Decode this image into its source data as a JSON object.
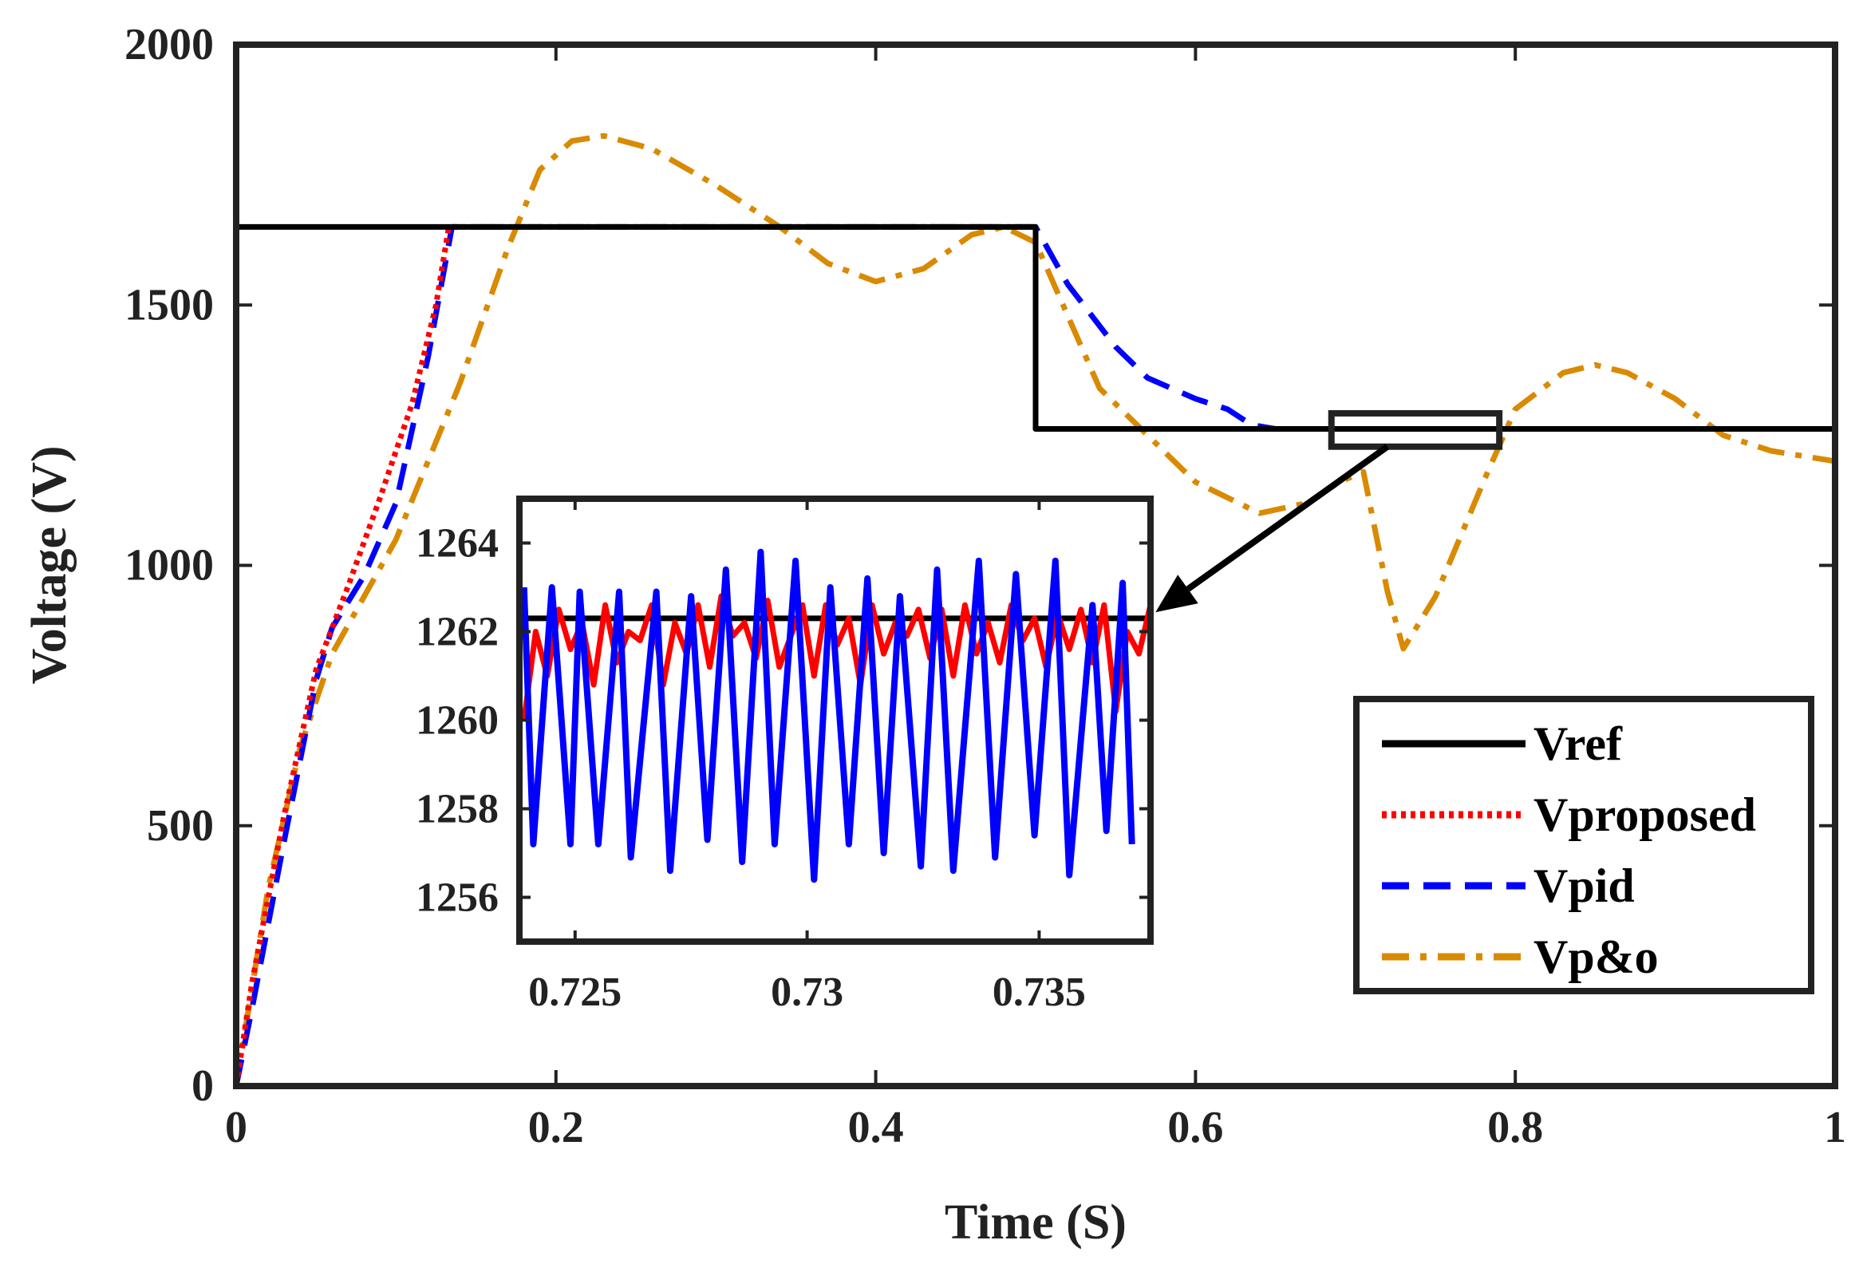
{
  "chart_data": {
    "type": "line",
    "title": "",
    "xlabel": "Time (S)",
    "ylabel": "Voltage (V)",
    "xlim": [
      0,
      1
    ],
    "ylim": [
      0,
      2000
    ],
    "xticks": [
      0,
      0.2,
      0.4,
      0.6,
      0.8,
      1
    ],
    "xtick_labels": [
      "0",
      "0.2",
      "0.4",
      "0.6",
      "0.8",
      "1"
    ],
    "yticks": [
      0,
      500,
      1000,
      1500,
      2000
    ],
    "ytick_labels": [
      "0",
      "500",
      "1000",
      "1500",
      "2000"
    ],
    "grid": false,
    "legend_position": "bottom-right",
    "series": [
      {
        "name": "Vref",
        "color": "#000000",
        "style": "solid",
        "x": [
          0,
          0.5,
          0.5,
          1.0
        ],
        "y": [
          1650,
          1650,
          1262,
          1262
        ]
      },
      {
        "name": "Vproposed",
        "color": "#ff0000",
        "style": "dotted",
        "x": [
          0,
          0.01,
          0.03,
          0.05,
          0.07,
          0.09,
          0.11,
          0.125,
          0.133,
          0.5,
          0.5,
          1.0
        ],
        "y": [
          0,
          200,
          520,
          800,
          960,
          1130,
          1310,
          1500,
          1650,
          1650,
          1262,
          1262
        ]
      },
      {
        "name": "Vpid",
        "color": "#0000ff",
        "style": "dashed",
        "x": [
          0,
          0.01,
          0.03,
          0.05,
          0.06,
          0.08,
          0.1,
          0.12,
          0.135,
          0.5,
          0.52,
          0.55,
          0.57,
          0.6,
          0.62,
          0.635,
          0.65,
          1.0
        ],
        "y": [
          0,
          150,
          470,
          780,
          880,
          980,
          1120,
          1400,
          1650,
          1650,
          1540,
          1420,
          1360,
          1320,
          1300,
          1270,
          1262,
          1262
        ]
      },
      {
        "name": "Vp&o",
        "color": "#d98a00",
        "style": "dashdot",
        "x": [
          0,
          0.02,
          0.04,
          0.06,
          0.1,
          0.14,
          0.17,
          0.19,
          0.21,
          0.23,
          0.26,
          0.3,
          0.34,
          0.37,
          0.4,
          0.43,
          0.46,
          0.48,
          0.5,
          0.52,
          0.54,
          0.57,
          0.6,
          0.64,
          0.67,
          0.69,
          0.705,
          0.72,
          0.73,
          0.75,
          0.78,
          0.8,
          0.83,
          0.85,
          0.87,
          0.9,
          0.93,
          0.96,
          1.0
        ],
        "y": [
          0,
          380,
          650,
          830,
          1050,
          1350,
          1610,
          1760,
          1815,
          1825,
          1800,
          1730,
          1650,
          1580,
          1545,
          1570,
          1635,
          1650,
          1620,
          1480,
          1340,
          1250,
          1160,
          1100,
          1120,
          1160,
          1180,
          950,
          840,
          940,
          1160,
          1300,
          1370,
          1385,
          1370,
          1320,
          1250,
          1220,
          1200
        ]
      }
    ],
    "annotations": [
      {
        "type": "zoom-box",
        "x_range": [
          0.685,
          0.79
        ],
        "y_range": [
          1228,
          1292
        ]
      },
      {
        "type": "arrow",
        "from": [
          0.72,
          1228
        ],
        "to": [
          0.575,
          910
        ]
      }
    ],
    "inset": {
      "xlim": [
        0.7238,
        0.7374
      ],
      "ylim": [
        1255,
        1265
      ],
      "xticks": [
        0.725,
        0.73,
        0.735
      ],
      "xtick_labels": [
        "0.725",
        "0.73",
        "0.735"
      ],
      "yticks": [
        1256,
        1258,
        1260,
        1262,
        1264
      ],
      "ytick_labels": [
        "1256",
        "1258",
        "1260",
        "1262",
        "1264"
      ],
      "ref_level": 1262.3,
      "proposed": {
        "name": "Vproposed",
        "color": "#ff0000",
        "x_start": 0.7239,
        "x_step": 0.00025,
        "values": [
          1260,
          1262,
          1261,
          1262.5,
          1261.6,
          1262.2,
          1260.8,
          1262.6,
          1261.3,
          1262,
          1261.8,
          1262.6,
          1260.8,
          1262.2,
          1261.5,
          1262.6,
          1261.2,
          1262.8,
          1261.9,
          1262.2,
          1261.4,
          1262.7,
          1261.2,
          1261.9,
          1262.6,
          1261,
          1262.6,
          1261.7,
          1262.3,
          1260.8,
          1262.6,
          1261.5,
          1262.2,
          1261.9,
          1262.5,
          1261.4,
          1262.5,
          1261,
          1262.6,
          1261.5,
          1262.2,
          1261.3,
          1262.6,
          1261.8,
          1262.3,
          1261.2,
          1262.4,
          1261.6,
          1262.5,
          1261.3,
          1262.6,
          1260.2,
          1262,
          1261.5,
          1262.6,
          1260
        ]
      },
      "pid": {
        "name": "Vpid",
        "color": "#0000ff",
        "x": [
          0.7239,
          0.7241,
          0.7245,
          0.7249,
          0.7251,
          0.7255,
          0.72595,
          0.7262,
          0.72675,
          0.72705,
          0.7275,
          0.72785,
          0.72825,
          0.7286,
          0.729,
          0.7293,
          0.72975,
          0.73015,
          0.7305,
          0.7309,
          0.7313,
          0.73165,
          0.732,
          0.73245,
          0.7328,
          0.73315,
          0.7337,
          0.73405,
          0.7345,
          0.7349,
          0.73535,
          0.73565,
          0.73615,
          0.73645,
          0.7368,
          0.737
        ],
        "y": [
          1263,
          1257.2,
          1263,
          1257.2,
          1262.9,
          1257.2,
          1262.9,
          1256.9,
          1262.9,
          1256.6,
          1262.8,
          1257.3,
          1263.4,
          1256.8,
          1263.8,
          1257.2,
          1263.6,
          1256.4,
          1263,
          1257.2,
          1263.2,
          1257,
          1262.8,
          1256.7,
          1263.4,
          1256.6,
          1263.6,
          1256.9,
          1263.3,
          1257.4,
          1263.6,
          1256.5,
          1262.6,
          1257.5,
          1263.1,
          1257.2
        ]
      }
    },
    "legend": [
      {
        "label": "Vref",
        "color": "#000000",
        "style": "solid"
      },
      {
        "label": "Vproposed",
        "color": "#ff0000",
        "style": "dotted"
      },
      {
        "label": "Vpid",
        "color": "#0000ff",
        "style": "dashed"
      },
      {
        "label": "Vp&o",
        "color": "#d98a00",
        "style": "dashdot"
      }
    ]
  }
}
